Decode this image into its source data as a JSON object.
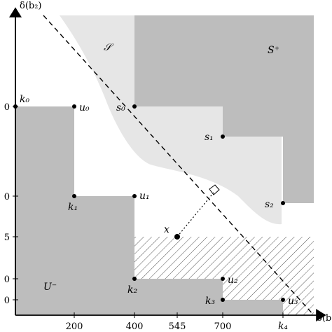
{
  "axes": {
    "x_title": "δ(b",
    "y_title": "δ(b₂)",
    "x_ticks": [
      "200",
      "400",
      "545",
      "700",
      "k₄"
    ],
    "y_ticks": [
      "0",
      "0",
      "5",
      "0",
      "0"
    ]
  },
  "regions": {
    "s_label": "𝒮",
    "s_plus_label": "S⁺",
    "u_minus_label": "U⁻"
  },
  "points": {
    "k0": "k₀",
    "u0": "u₀",
    "s0": "s₀",
    "s1": "s₁",
    "s2": "s₂",
    "k1": "k₁",
    "u1": "u₁",
    "x": "x",
    "k2": "k₂",
    "u2": "u₂",
    "k3": "k₃",
    "u3": "u₃"
  },
  "colors": {
    "dark_gray": "#bdbdbd",
    "light_gray": "#e6e6e6",
    "hatch": "#555555"
  }
}
